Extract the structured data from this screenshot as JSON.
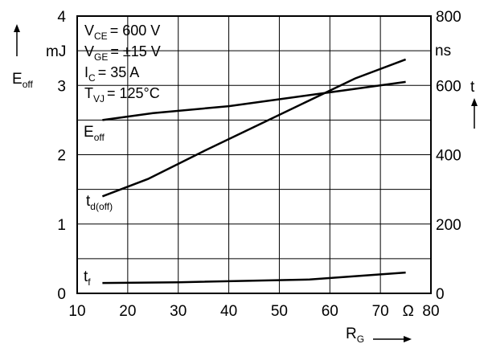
{
  "chart_data": {
    "type": "line",
    "x": {
      "label": "R",
      "label_sub": "G",
      "unit": "Ω",
      "range": [
        10,
        80
      ],
      "ticks": [
        "10",
        "20",
        "30",
        "40",
        "50",
        "60",
        "70",
        "80"
      ]
    },
    "y_left": {
      "label": "E",
      "label_sub": "off",
      "unit": "mJ",
      "range": [
        0,
        4
      ],
      "ticks": [
        "0",
        "1",
        "2",
        "3",
        "4"
      ]
    },
    "y_right": {
      "label": "t",
      "unit": "ns",
      "range": [
        0,
        800
      ],
      "ticks": [
        "0",
        "200",
        "400",
        "600",
        "800"
      ]
    },
    "conditions": [
      {
        "sym": "V",
        "sub": "CE",
        "val": "= 600 V"
      },
      {
        "sym": "V",
        "sub": "GE",
        "val": "= ±15 V"
      },
      {
        "sym": "I",
        "sub": "C",
        "val": "=   35 A"
      },
      {
        "sym": "T",
        "sub": "VJ",
        "val": "= 125°C"
      }
    ],
    "series": [
      {
        "name": "E",
        "name_sub": "off",
        "axis": "left",
        "points": [
          [
            15,
            2.5
          ],
          [
            25,
            2.6
          ],
          [
            40,
            2.7
          ],
          [
            50,
            2.8
          ],
          [
            60,
            2.9
          ],
          [
            75,
            3.05
          ]
        ]
      },
      {
        "name": "t",
        "name_sub": "d(off)",
        "axis": "right",
        "points": [
          [
            15,
            280
          ],
          [
            24,
            330
          ],
          [
            35,
            410
          ],
          [
            45,
            480
          ],
          [
            55,
            550
          ],
          [
            65,
            620
          ],
          [
            75,
            675
          ]
        ]
      },
      {
        "name": "t",
        "name_sub": "f",
        "axis": "right",
        "points": [
          [
            15,
            30
          ],
          [
            30,
            32
          ],
          [
            56,
            40
          ],
          [
            75,
            60
          ]
        ]
      }
    ],
    "grid": true
  }
}
